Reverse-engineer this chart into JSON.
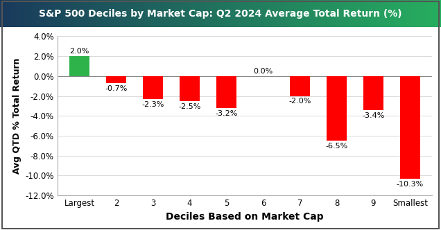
{
  "title": "S&P 500 Deciles by Market Cap: Q2 2024 Average Total Return (%)",
  "categories": [
    "Largest",
    "2",
    "3",
    "4",
    "5",
    "6",
    "7",
    "8",
    "9",
    "Smallest"
  ],
  "values": [
    2.0,
    -0.7,
    -2.3,
    -2.5,
    -3.2,
    0.0,
    -2.0,
    -6.5,
    -3.4,
    -10.3
  ],
  "bar_colors": [
    "#2db34a",
    "#ff0000",
    "#ff0000",
    "#ff0000",
    "#ff0000",
    "#ff0000",
    "#ff0000",
    "#ff0000",
    "#ff0000",
    "#ff0000"
  ],
  "xlabel": "Deciles Based on Market Cap",
  "ylabel": "Avg QTD % Total Return",
  "ylim": [
    -12.0,
    4.0
  ],
  "yticks": [
    4.0,
    2.0,
    0.0,
    -2.0,
    -4.0,
    -6.0,
    -8.0,
    -10.0,
    -12.0
  ],
  "ytick_labels": [
    "4.0%",
    "2.0%",
    "0.0%",
    "-2.0%",
    "-4.0%",
    "-6.0%",
    "-8.0%",
    "-10.0%",
    "-12.0%"
  ],
  "title_bg_left": "#1a3a5c",
  "title_bg_right": "#27ae60",
  "title_text_color": "#ffffff",
  "background_color": "#ffffff",
  "plot_bg_color": "#ffffff",
  "border_color": "#555555",
  "label_fontsize": 8.5,
  "value_label_fontsize": 8.0,
  "title_fontsize": 10.0,
  "bar_width": 0.55
}
